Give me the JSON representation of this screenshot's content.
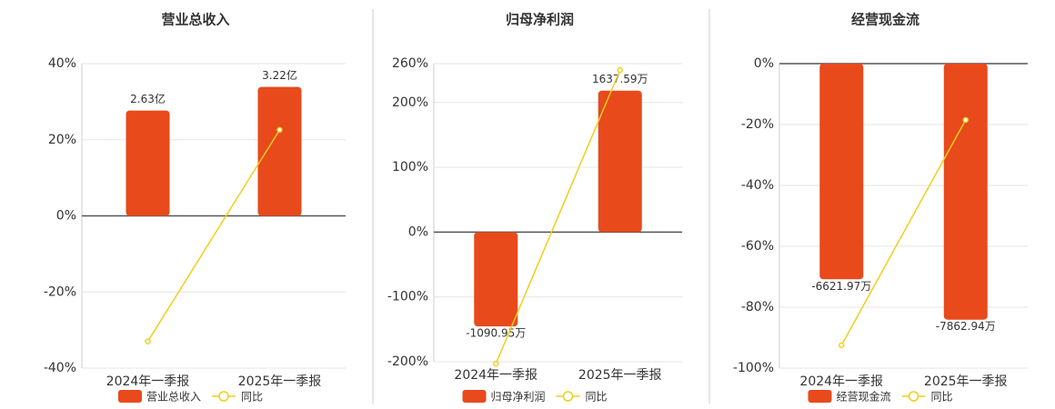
{
  "chart_data": [
    {
      "type": "bar",
      "title": "营业总收入",
      "categories": [
        "2024年一季报",
        "2025年一季报"
      ],
      "series": [
        {
          "name": "营业总收入",
          "color": "#e84a1b",
          "axis": "y2",
          "values": [
            2.63,
            3.22
          ],
          "value_labels": [
            "2.63亿",
            "3.22亿"
          ]
        },
        {
          "name": "同比",
          "type": "line",
          "color": "#f0cf1c",
          "values": [
            -33,
            22.6
          ]
        }
      ],
      "ylim": [
        -40,
        40
      ],
      "yticks": [
        {
          "value": -40,
          "label": "-40%"
        },
        {
          "value": -20,
          "label": "-20%"
        },
        {
          "value": 0,
          "label": "0%"
        },
        {
          "value": 20,
          "label": "20%"
        },
        {
          "value": 40,
          "label": "40%"
        }
      ],
      "y2lim": [
        -3.8,
        3.8
      ],
      "grid": true
    },
    {
      "type": "bar",
      "title": "归母净利润",
      "categories": [
        "2024年一季报",
        "2025年一季报"
      ],
      "series": [
        {
          "name": "归母净利润",
          "color": "#e84a1b",
          "axis": "y2",
          "values": [
            -1090.95,
            1637.59
          ],
          "value_labels": [
            "-1090.95万",
            "1637.59万"
          ]
        },
        {
          "name": "同比",
          "type": "line",
          "color": "#f0cf1c",
          "values": [
            -203,
            250
          ]
        }
      ],
      "ylim": [
        -200,
        260
      ],
      "yticks": [
        {
          "value": -200,
          "label": "-200%"
        },
        {
          "value": -100,
          "label": "-100%"
        },
        {
          "value": 0,
          "label": "0%"
        },
        {
          "value": 100,
          "label": "100%"
        },
        {
          "value": 200,
          "label": "200%"
        },
        {
          "value": 260,
          "label": "260%"
        }
      ],
      "y2lim": [
        -1500,
        1950
      ],
      "grid": true
    },
    {
      "type": "bar",
      "title": "经营现金流",
      "categories": [
        "2024年一季报",
        "2025年一季报"
      ],
      "series": [
        {
          "name": "经营现金流",
          "color": "#e84a1b",
          "axis": "y2",
          "values": [
            -6621.97,
            -7862.94
          ],
          "value_labels": [
            "-6621.97万",
            "-7862.94万"
          ]
        },
        {
          "name": "同比",
          "type": "line",
          "color": "#f0cf1c",
          "values": [
            -92.5,
            -18.5
          ]
        }
      ],
      "ylim": [
        -100,
        0
      ],
      "yticks": [
        {
          "value": -100,
          "label": "-100%"
        },
        {
          "value": -80,
          "label": "-80%"
        },
        {
          "value": -60,
          "label": "-60%"
        },
        {
          "value": -40,
          "label": "-40%"
        },
        {
          "value": -20,
          "label": "-20%"
        },
        {
          "value": 0,
          "label": "0%"
        }
      ],
      "y2lim": [
        -9350,
        0
      ],
      "grid": true
    }
  ]
}
